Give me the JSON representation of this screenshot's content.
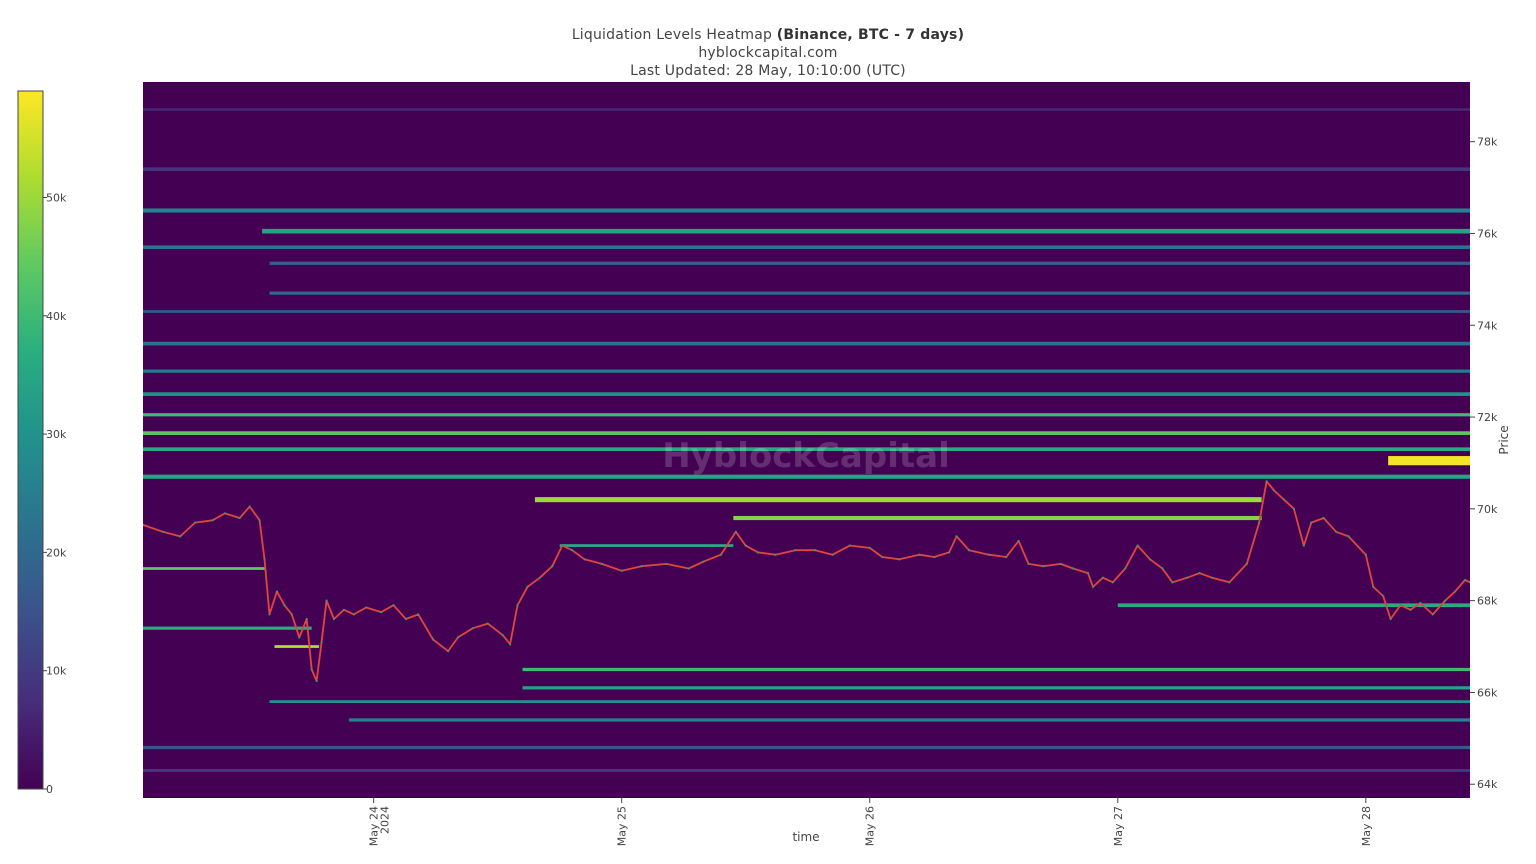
{
  "header": {
    "title_main": "Liquidation Levels Heatmap",
    "title_bold": "(Binance, BTC - 7 days)",
    "source": "hyblockcapital.com",
    "updated": "Last Updated: 28 May, 10:10:00 (UTC)"
  },
  "watermark": "HyblockCapital",
  "colorscale": {
    "stops": [
      "#440154",
      "#472d7b",
      "#3b528b",
      "#2c728e",
      "#21918c",
      "#28ae80",
      "#5ec962",
      "#addc30",
      "#fde725"
    ],
    "ticks": [
      "0",
      "10k",
      "20k",
      "30k",
      "40k",
      "50k"
    ],
    "tick_values": [
      0,
      10000,
      20000,
      30000,
      40000,
      50000
    ],
    "max": 59000
  },
  "chart_data": {
    "type": "heatmap",
    "title": "Liquidation Levels Heatmap (Binance, BTC - 7 days)",
    "xlabel": "time",
    "ylabel": "Price",
    "x_ticks": [
      {
        "label": "May 24",
        "sub": "2024",
        "t": 24.0
      },
      {
        "label": "May 25",
        "sub": "",
        "t": 25.0
      },
      {
        "label": "May 26",
        "sub": "",
        "t": 26.0
      },
      {
        "label": "May 27",
        "sub": "",
        "t": 27.0
      },
      {
        "label": "May 28",
        "sub": "",
        "t": 28.0
      }
    ],
    "xlim": [
      23.07,
      28.42
    ],
    "y_ticks": [
      64000,
      66000,
      68000,
      70000,
      72000,
      74000,
      76000,
      78000
    ],
    "y_tick_labels": [
      "64k",
      "66k",
      "68k",
      "70k",
      "72k",
      "74k",
      "76k",
      "78k"
    ],
    "ylim": [
      63700,
      79300
    ],
    "price_series": [
      {
        "t": 23.07,
        "p": 69650
      },
      {
        "t": 23.15,
        "p": 69500
      },
      {
        "t": 23.22,
        "p": 69400
      },
      {
        "t": 23.28,
        "p": 69700
      },
      {
        "t": 23.35,
        "p": 69750
      },
      {
        "t": 23.4,
        "p": 69900
      },
      {
        "t": 23.46,
        "p": 69800
      },
      {
        "t": 23.5,
        "p": 70050
      },
      {
        "t": 23.54,
        "p": 69750
      },
      {
        "t": 23.56,
        "p": 68900
      },
      {
        "t": 23.58,
        "p": 67700
      },
      {
        "t": 23.61,
        "p": 68200
      },
      {
        "t": 23.64,
        "p": 67900
      },
      {
        "t": 23.67,
        "p": 67700
      },
      {
        "t": 23.7,
        "p": 67200
      },
      {
        "t": 23.73,
        "p": 67600
      },
      {
        "t": 23.75,
        "p": 66500
      },
      {
        "t": 23.77,
        "p": 66250
      },
      {
        "t": 23.79,
        "p": 67100
      },
      {
        "t": 23.81,
        "p": 68000
      },
      {
        "t": 23.84,
        "p": 67600
      },
      {
        "t": 23.88,
        "p": 67800
      },
      {
        "t": 23.92,
        "p": 67700
      },
      {
        "t": 23.97,
        "p": 67850
      },
      {
        "t": 24.03,
        "p": 67750
      },
      {
        "t": 24.08,
        "p": 67900
      },
      {
        "t": 24.13,
        "p": 67600
      },
      {
        "t": 24.18,
        "p": 67700
      },
      {
        "t": 24.24,
        "p": 67150
      },
      {
        "t": 24.3,
        "p": 66900
      },
      {
        "t": 24.34,
        "p": 67200
      },
      {
        "t": 24.4,
        "p": 67400
      },
      {
        "t": 24.46,
        "p": 67500
      },
      {
        "t": 24.52,
        "p": 67250
      },
      {
        "t": 24.55,
        "p": 67050
      },
      {
        "t": 24.58,
        "p": 67900
      },
      {
        "t": 24.62,
        "p": 68300
      },
      {
        "t": 24.67,
        "p": 68500
      },
      {
        "t": 24.72,
        "p": 68750
      },
      {
        "t": 24.76,
        "p": 69200
      },
      {
        "t": 24.8,
        "p": 69100
      },
      {
        "t": 24.85,
        "p": 68900
      },
      {
        "t": 24.92,
        "p": 68800
      },
      {
        "t": 25.0,
        "p": 68650
      },
      {
        "t": 25.08,
        "p": 68750
      },
      {
        "t": 25.18,
        "p": 68800
      },
      {
        "t": 25.27,
        "p": 68700
      },
      {
        "t": 25.33,
        "p": 68850
      },
      {
        "t": 25.4,
        "p": 69000
      },
      {
        "t": 25.46,
        "p": 69500
      },
      {
        "t": 25.5,
        "p": 69200
      },
      {
        "t": 25.55,
        "p": 69050
      },
      {
        "t": 25.62,
        "p": 69000
      },
      {
        "t": 25.7,
        "p": 69100
      },
      {
        "t": 25.78,
        "p": 69100
      },
      {
        "t": 25.85,
        "p": 69000
      },
      {
        "t": 25.92,
        "p": 69200
      },
      {
        "t": 26.0,
        "p": 69150
      },
      {
        "t": 26.05,
        "p": 68950
      },
      {
        "t": 26.12,
        "p": 68900
      },
      {
        "t": 26.2,
        "p": 69000
      },
      {
        "t": 26.26,
        "p": 68950
      },
      {
        "t": 26.32,
        "p": 69050
      },
      {
        "t": 26.35,
        "p": 69400
      },
      {
        "t": 26.4,
        "p": 69100
      },
      {
        "t": 26.48,
        "p": 69000
      },
      {
        "t": 26.55,
        "p": 68950
      },
      {
        "t": 26.6,
        "p": 69300
      },
      {
        "t": 26.64,
        "p": 68800
      },
      {
        "t": 26.7,
        "p": 68750
      },
      {
        "t": 26.77,
        "p": 68800
      },
      {
        "t": 26.82,
        "p": 68700
      },
      {
        "t": 26.88,
        "p": 68600
      },
      {
        "t": 26.9,
        "p": 68300
      },
      {
        "t": 26.94,
        "p": 68500
      },
      {
        "t": 26.98,
        "p": 68400
      },
      {
        "t": 27.03,
        "p": 68700
      },
      {
        "t": 27.08,
        "p": 69200
      },
      {
        "t": 27.13,
        "p": 68900
      },
      {
        "t": 27.18,
        "p": 68700
      },
      {
        "t": 27.22,
        "p": 68400
      },
      {
        "t": 27.28,
        "p": 68500
      },
      {
        "t": 27.33,
        "p": 68600
      },
      {
        "t": 27.38,
        "p": 68500
      },
      {
        "t": 27.45,
        "p": 68400
      },
      {
        "t": 27.52,
        "p": 68800
      },
      {
        "t": 27.57,
        "p": 69700
      },
      {
        "t": 27.6,
        "p": 70600
      },
      {
        "t": 27.63,
        "p": 70400
      },
      {
        "t": 27.67,
        "p": 70200
      },
      {
        "t": 27.71,
        "p": 70000
      },
      {
        "t": 27.75,
        "p": 69200
      },
      {
        "t": 27.78,
        "p": 69700
      },
      {
        "t": 27.83,
        "p": 69800
      },
      {
        "t": 27.88,
        "p": 69500
      },
      {
        "t": 27.93,
        "p": 69400
      },
      {
        "t": 28.0,
        "p": 69000
      },
      {
        "t": 28.03,
        "p": 68300
      },
      {
        "t": 28.07,
        "p": 68100
      },
      {
        "t": 28.1,
        "p": 67600
      },
      {
        "t": 28.14,
        "p": 67900
      },
      {
        "t": 28.18,
        "p": 67800
      },
      {
        "t": 28.22,
        "p": 67950
      },
      {
        "t": 28.27,
        "p": 67700
      },
      {
        "t": 28.32,
        "p": 68000
      },
      {
        "t": 28.36,
        "p": 68200
      },
      {
        "t": 28.4,
        "p": 68450
      },
      {
        "t": 28.42,
        "p": 68400
      }
    ],
    "heat_bands": [
      {
        "p": 78700,
        "h": 60,
        "t0": 23.07,
        "t1": 28.42,
        "v": 6000
      },
      {
        "p": 77400,
        "h": 80,
        "t0": 23.07,
        "t1": 28.42,
        "v": 9000
      },
      {
        "p": 76500,
        "h": 90,
        "t0": 23.07,
        "t1": 28.42,
        "v": 26000
      },
      {
        "p": 76050,
        "h": 100,
        "t0": 23.55,
        "t1": 28.42,
        "v": 34000
      },
      {
        "p": 75700,
        "h": 80,
        "t0": 23.07,
        "t1": 28.42,
        "v": 22000
      },
      {
        "p": 75350,
        "h": 70,
        "t0": 23.58,
        "t1": 28.42,
        "v": 18000
      },
      {
        "p": 74700,
        "h": 70,
        "t0": 23.58,
        "t1": 28.42,
        "v": 20000
      },
      {
        "p": 74300,
        "h": 60,
        "t0": 23.07,
        "t1": 28.42,
        "v": 16000
      },
      {
        "p": 73600,
        "h": 80,
        "t0": 23.07,
        "t1": 28.42,
        "v": 22000
      },
      {
        "p": 73000,
        "h": 70,
        "t0": 23.07,
        "t1": 28.42,
        "v": 24000
      },
      {
        "p": 72500,
        "h": 80,
        "t0": 23.07,
        "t1": 28.42,
        "v": 30000
      },
      {
        "p": 72050,
        "h": 70,
        "t0": 23.07,
        "t1": 28.42,
        "v": 40000
      },
      {
        "p": 71650,
        "h": 80,
        "t0": 23.07,
        "t1": 28.42,
        "v": 44000
      },
      {
        "p": 71300,
        "h": 80,
        "t0": 23.07,
        "t1": 28.42,
        "v": 36000
      },
      {
        "p": 71050,
        "h": 200,
        "t0": 28.09,
        "t1": 28.42,
        "v": 58000
      },
      {
        "p": 70700,
        "h": 90,
        "t0": 23.07,
        "t1": 28.42,
        "v": 34000
      },
      {
        "p": 70200,
        "h": 110,
        "t0": 24.65,
        "t1": 27.58,
        "v": 50000
      },
      {
        "p": 69800,
        "h": 90,
        "t0": 25.45,
        "t1": 27.58,
        "v": 48000
      },
      {
        "p": 69200,
        "h": 60,
        "t0": 24.75,
        "t1": 25.45,
        "v": 36000
      },
      {
        "p": 68700,
        "h": 60,
        "t0": 23.07,
        "t1": 23.56,
        "v": 44000
      },
      {
        "p": 67900,
        "h": 80,
        "t0": 27.0,
        "t1": 28.42,
        "v": 36000
      },
      {
        "p": 67400,
        "h": 70,
        "t0": 23.07,
        "t1": 23.75,
        "v": 36000
      },
      {
        "p": 67000,
        "h": 60,
        "t0": 23.6,
        "t1": 23.78,
        "v": 52000
      },
      {
        "p": 66500,
        "h": 70,
        "t0": 24.6,
        "t1": 28.42,
        "v": 40000
      },
      {
        "p": 66100,
        "h": 70,
        "t0": 24.6,
        "t1": 28.42,
        "v": 34000
      },
      {
        "p": 65800,
        "h": 60,
        "t0": 23.58,
        "t1": 28.42,
        "v": 30000
      },
      {
        "p": 65400,
        "h": 70,
        "t0": 23.9,
        "t1": 28.42,
        "v": 26000
      },
      {
        "p": 64800,
        "h": 70,
        "t0": 23.07,
        "t1": 28.42,
        "v": 16000
      },
      {
        "p": 64300,
        "h": 60,
        "t0": 23.07,
        "t1": 28.42,
        "v": 10000
      }
    ]
  }
}
